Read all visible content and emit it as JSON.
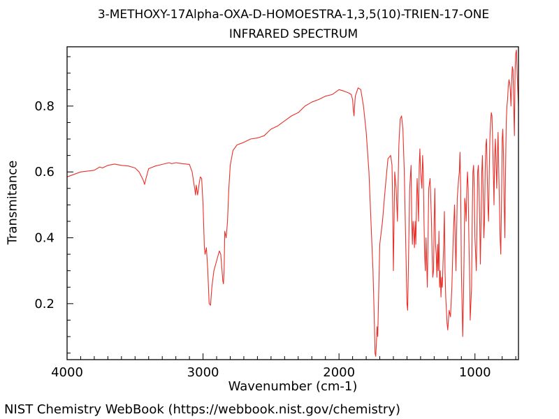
{
  "chart_data": {
    "type": "line",
    "title": "3-METHOXY-17Alpha-OXA-D-HOMOESTRA-1,3,5(10)-TRIEN-17-ONE",
    "subtitle": "INFRARED SPECTRUM",
    "xlabel": "Wavenumber (cm-1)",
    "ylabel": "Transmitance",
    "xlim": [
      4000,
      680
    ],
    "ylim": [
      0.03,
      0.98
    ],
    "x_reversed": true,
    "xticks": [
      4000,
      3000,
      2000,
      1000
    ],
    "xtick_labels": [
      "4000",
      "3000",
      "2000",
      "1000"
    ],
    "yticks": [
      0.2,
      0.4,
      0.6,
      0.8
    ],
    "ytick_labels": [
      "0.2",
      "0.4",
      "0.6",
      "0.8"
    ],
    "line_color": "#e8302a",
    "grid": false,
    "series": [
      {
        "x": [
          4000,
          3900,
          3800,
          3760,
          3740,
          3700,
          3650,
          3600,
          3550,
          3500,
          3470,
          3440,
          3430,
          3420,
          3400,
          3350,
          3300,
          3250,
          3230,
          3200,
          3150,
          3100,
          3080,
          3060,
          3055,
          3050,
          3040,
          3030,
          3020,
          3010,
          3000,
          2990,
          2985,
          2975,
          2965,
          2955,
          2945,
          2935,
          2920,
          2900,
          2880,
          2870,
          2860,
          2855,
          2850,
          2845,
          2840,
          2830,
          2820,
          2810,
          2800,
          2780,
          2750,
          2700,
          2650,
          2600,
          2550,
          2500,
          2450,
          2400,
          2350,
          2300,
          2250,
          2200,
          2150,
          2100,
          2050,
          2000,
          1960,
          1930,
          1910,
          1900,
          1895,
          1890,
          1885,
          1880,
          1860,
          1840,
          1820,
          1800,
          1780,
          1765,
          1750,
          1740,
          1735,
          1730,
          1725,
          1720,
          1715,
          1710,
          1700,
          1680,
          1660,
          1640,
          1620,
          1610,
          1605,
          1600,
          1595,
          1590,
          1580,
          1570,
          1560,
          1550,
          1540,
          1530,
          1520,
          1510,
          1505,
          1500,
          1495,
          1490,
          1480,
          1470,
          1465,
          1460,
          1455,
          1450,
          1445,
          1440,
          1435,
          1430,
          1425,
          1420,
          1415,
          1410,
          1405,
          1400,
          1390,
          1385,
          1380,
          1375,
          1370,
          1365,
          1360,
          1350,
          1340,
          1330,
          1320,
          1315,
          1310,
          1305,
          1300,
          1295,
          1290,
          1285,
          1280,
          1275,
          1270,
          1265,
          1260,
          1255,
          1250,
          1245,
          1240,
          1235,
          1230,
          1225,
          1220,
          1215,
          1210,
          1205,
          1200,
          1190,
          1180,
          1170,
          1160,
          1150,
          1140,
          1130,
          1120,
          1115,
          1110,
          1105,
          1100,
          1095,
          1090,
          1085,
          1080,
          1075,
          1070,
          1065,
          1060,
          1055,
          1050,
          1045,
          1040,
          1035,
          1030,
          1025,
          1020,
          1015,
          1010,
          1005,
          1000,
          995,
          990,
          985,
          980,
          975,
          970,
          965,
          960,
          955,
          950,
          945,
          940,
          935,
          930,
          925,
          920,
          915,
          910,
          905,
          900,
          895,
          890,
          885,
          880,
          875,
          870,
          865,
          860,
          855,
          850,
          845,
          840,
          835,
          830,
          825,
          820,
          815,
          810,
          805,
          800,
          795,
          790,
          785,
          780,
          775,
          770,
          765,
          760,
          755,
          750,
          745,
          740,
          735,
          730,
          725,
          720,
          715,
          710,
          705,
          700,
          695,
          690,
          685,
          680
        ],
        "y": [
          0.585,
          0.6,
          0.605,
          0.615,
          0.612,
          0.62,
          0.624,
          0.62,
          0.618,
          0.612,
          0.6,
          0.575,
          0.562,
          0.58,
          0.61,
          0.618,
          0.623,
          0.628,
          0.625,
          0.628,
          0.625,
          0.623,
          0.6,
          0.545,
          0.53,
          0.56,
          0.53,
          0.56,
          0.585,
          0.58,
          0.5,
          0.37,
          0.35,
          0.37,
          0.3,
          0.2,
          0.195,
          0.25,
          0.3,
          0.33,
          0.36,
          0.35,
          0.3,
          0.27,
          0.26,
          0.3,
          0.42,
          0.4,
          0.45,
          0.55,
          0.62,
          0.665,
          0.682,
          0.69,
          0.7,
          0.703,
          0.71,
          0.73,
          0.74,
          0.755,
          0.77,
          0.78,
          0.8,
          0.812,
          0.82,
          0.83,
          0.835,
          0.85,
          0.845,
          0.84,
          0.835,
          0.82,
          0.79,
          0.77,
          0.8,
          0.83,
          0.855,
          0.85,
          0.8,
          0.72,
          0.6,
          0.45,
          0.3,
          0.15,
          0.05,
          0.04,
          0.08,
          0.13,
          0.1,
          0.2,
          0.38,
          0.45,
          0.55,
          0.64,
          0.65,
          0.62,
          0.5,
          0.3,
          0.45,
          0.6,
          0.55,
          0.45,
          0.68,
          0.76,
          0.77,
          0.73,
          0.6,
          0.4,
          0.3,
          0.2,
          0.18,
          0.3,
          0.55,
          0.62,
          0.45,
          0.38,
          0.45,
          0.42,
          0.37,
          0.45,
          0.38,
          0.5,
          0.58,
          0.52,
          0.45,
          0.62,
          0.67,
          0.6,
          0.55,
          0.65,
          0.6,
          0.45,
          0.35,
          0.3,
          0.4,
          0.25,
          0.55,
          0.58,
          0.45,
          0.35,
          0.28,
          0.3,
          0.45,
          0.55,
          0.38,
          0.35,
          0.28,
          0.38,
          0.3,
          0.42,
          0.25,
          0.3,
          0.22,
          0.28,
          0.25,
          0.32,
          0.38,
          0.48,
          0.3,
          0.22,
          0.18,
          0.14,
          0.12,
          0.18,
          0.16,
          0.25,
          0.4,
          0.5,
          0.3,
          0.52,
          0.58,
          0.6,
          0.66,
          0.55,
          0.3,
          0.2,
          0.1,
          0.2,
          0.35,
          0.52,
          0.5,
          0.45,
          0.55,
          0.6,
          0.55,
          0.4,
          0.3,
          0.15,
          0.2,
          0.25,
          0.45,
          0.6,
          0.62,
          0.55,
          0.4,
          0.35,
          0.3,
          0.45,
          0.6,
          0.62,
          0.55,
          0.45,
          0.32,
          0.45,
          0.6,
          0.65,
          0.55,
          0.4,
          0.45,
          0.6,
          0.68,
          0.7,
          0.6,
          0.5,
          0.45,
          0.6,
          0.7,
          0.75,
          0.78,
          0.77,
          0.7,
          0.6,
          0.5,
          0.65,
          0.7,
          0.62,
          0.55,
          0.65,
          0.72,
          0.6,
          0.5,
          0.4,
          0.35,
          0.5,
          0.7,
          0.73,
          0.65,
          0.5,
          0.4,
          0.6,
          0.75,
          0.8,
          0.82,
          0.86,
          0.88,
          0.87,
          0.85,
          0.8,
          0.88,
          0.92,
          0.91,
          0.8,
          0.71,
          0.9,
          0.96,
          0.97,
          0.9,
          0.85,
          0.8
        ]
      }
    ]
  },
  "footer": {
    "credit": "NIST Chemistry WebBook (https://webbook.nist.gov/chemistry)"
  }
}
